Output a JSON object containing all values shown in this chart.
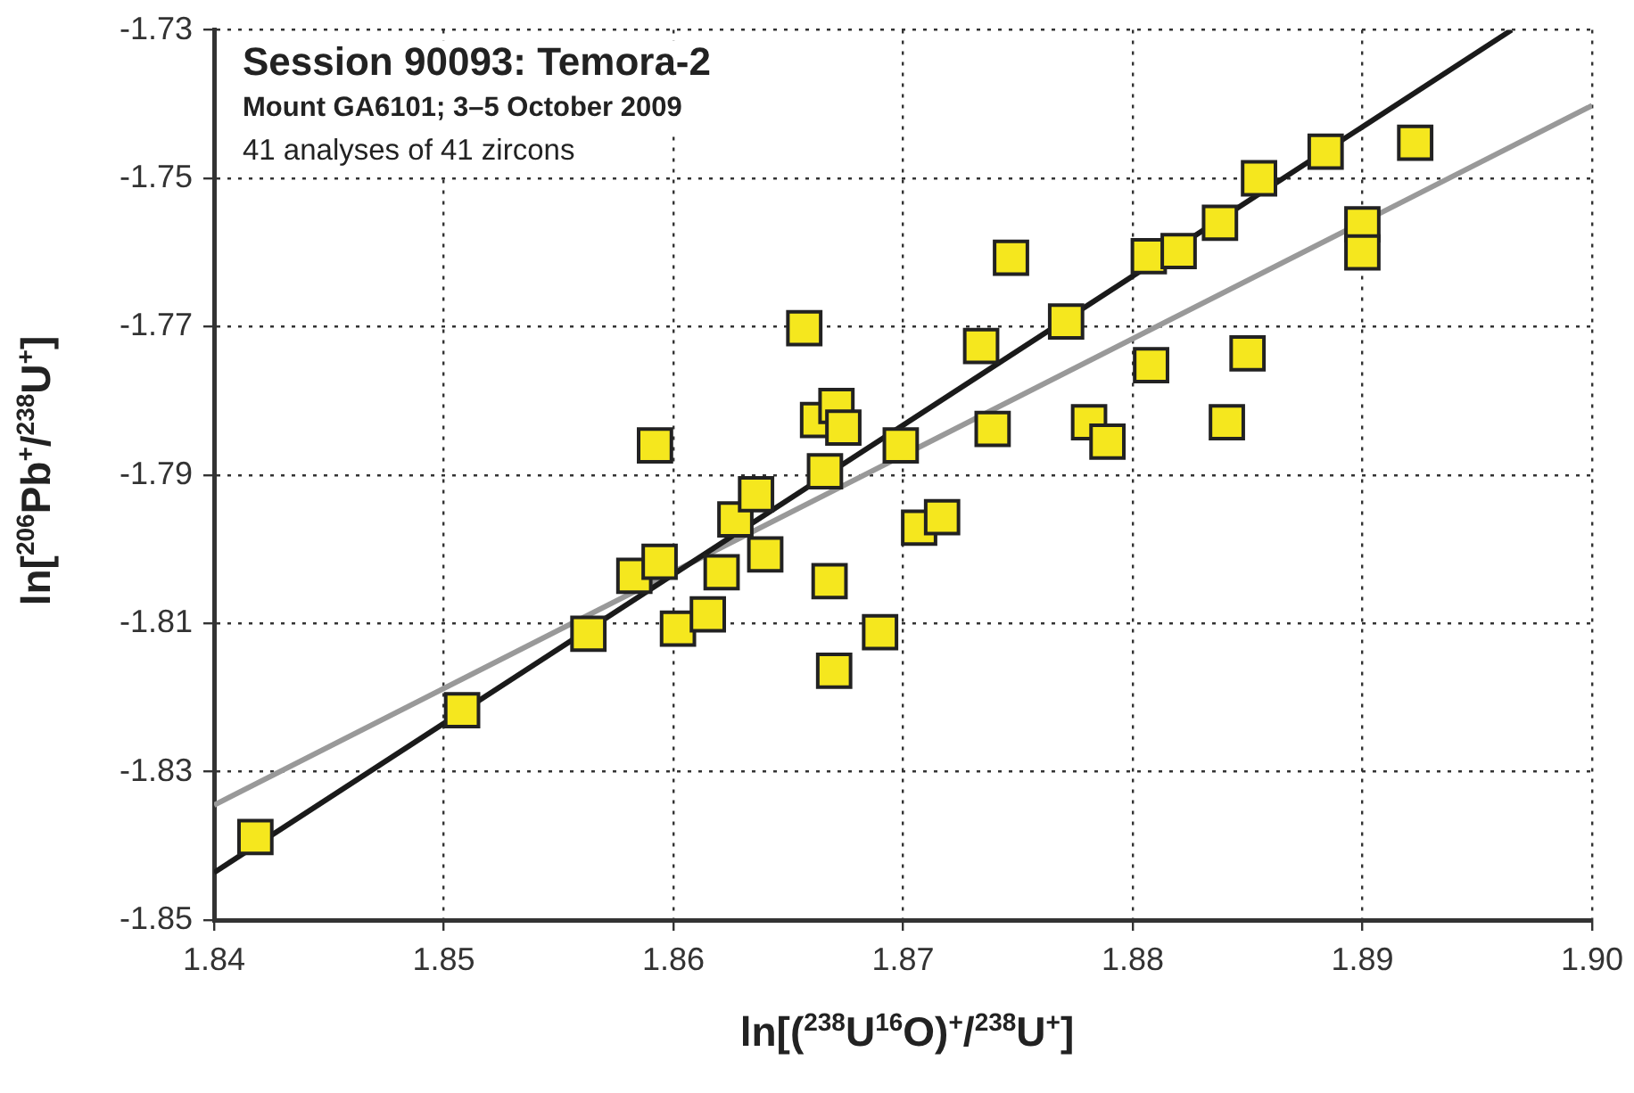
{
  "chart_data": {
    "type": "scatter",
    "title": "Session 90093: Temora-2",
    "subtitle": "Mount GA6101; 3–5 October 2009",
    "annotations": [
      "41 analyses of 41 zircons"
    ],
    "xlabel": "ln[($^{238}$U$^{16}$O)$^{+}$/$^{238}$U$^{+}$]",
    "ylabel": "ln[$^{206}$Pb$^{+}$/$^{238}$U$^{+}$]",
    "xlim": [
      1.84,
      1.9
    ],
    "xticks": [
      1.84,
      1.85,
      1.86,
      1.87,
      1.88,
      1.89,
      {
        "value": 1.9,
        "label": "1.90"
      }
    ],
    "ylim": [
      -1.85,
      -1.73
    ],
    "yticks": [
      -1.73,
      -1.75,
      -1.77,
      -1.79,
      -1.81,
      -1.83,
      -1.85
    ],
    "grid": true,
    "legend": false,
    "series": [
      {
        "marker": "square",
        "color": "#f5e71e",
        "x": [
          1.8418,
          1.8508,
          1.8563,
          1.8583,
          1.8594,
          1.8592,
          1.8602,
          1.8615,
          1.8621,
          1.8627,
          1.8636,
          1.864,
          1.8657,
          1.8663,
          1.8666,
          1.8668,
          1.8671,
          1.8674,
          1.867,
          1.869,
          1.8699,
          1.8707,
          1.8717,
          1.8734,
          1.8739,
          1.8747,
          1.8771,
          1.8781,
          1.8789,
          1.8807,
          1.8808,
          1.882,
          1.8838,
          1.8841,
          1.885,
          1.8855,
          1.8884,
          1.89,
          1.89,
          1.8923
        ],
        "values": [
          -1.8388,
          -1.8217,
          -1.8114,
          -1.8036,
          -1.8017,
          -1.786,
          -1.8107,
          -1.8088,
          -1.8031,
          -1.796,
          -1.7926,
          -1.8007,
          -1.7702,
          -1.7826,
          -1.7895,
          -1.8043,
          -1.7807,
          -1.7836,
          -1.8164,
          -1.8112,
          -1.786,
          -1.7971,
          -1.7957,
          -1.7726,
          -1.7838,
          -1.7607,
          -1.7693,
          -1.7829,
          -1.7855,
          -1.7605,
          -1.7752,
          -1.7598,
          -1.756,
          -1.7829,
          -1.7736,
          -1.75,
          -1.7464,
          -1.7562,
          -1.76,
          -1.7452
        ]
      },
      {
        "type": "line",
        "color": "#1a1a1a",
        "x": [
          1.84,
          1.8965
        ],
        "values": [
          -1.8436,
          -1.73
        ]
      },
      {
        "type": "line",
        "color": "#999999",
        "x": [
          1.84,
          1.9
        ],
        "values": [
          -1.8345,
          -1.7402
        ]
      }
    ]
  }
}
